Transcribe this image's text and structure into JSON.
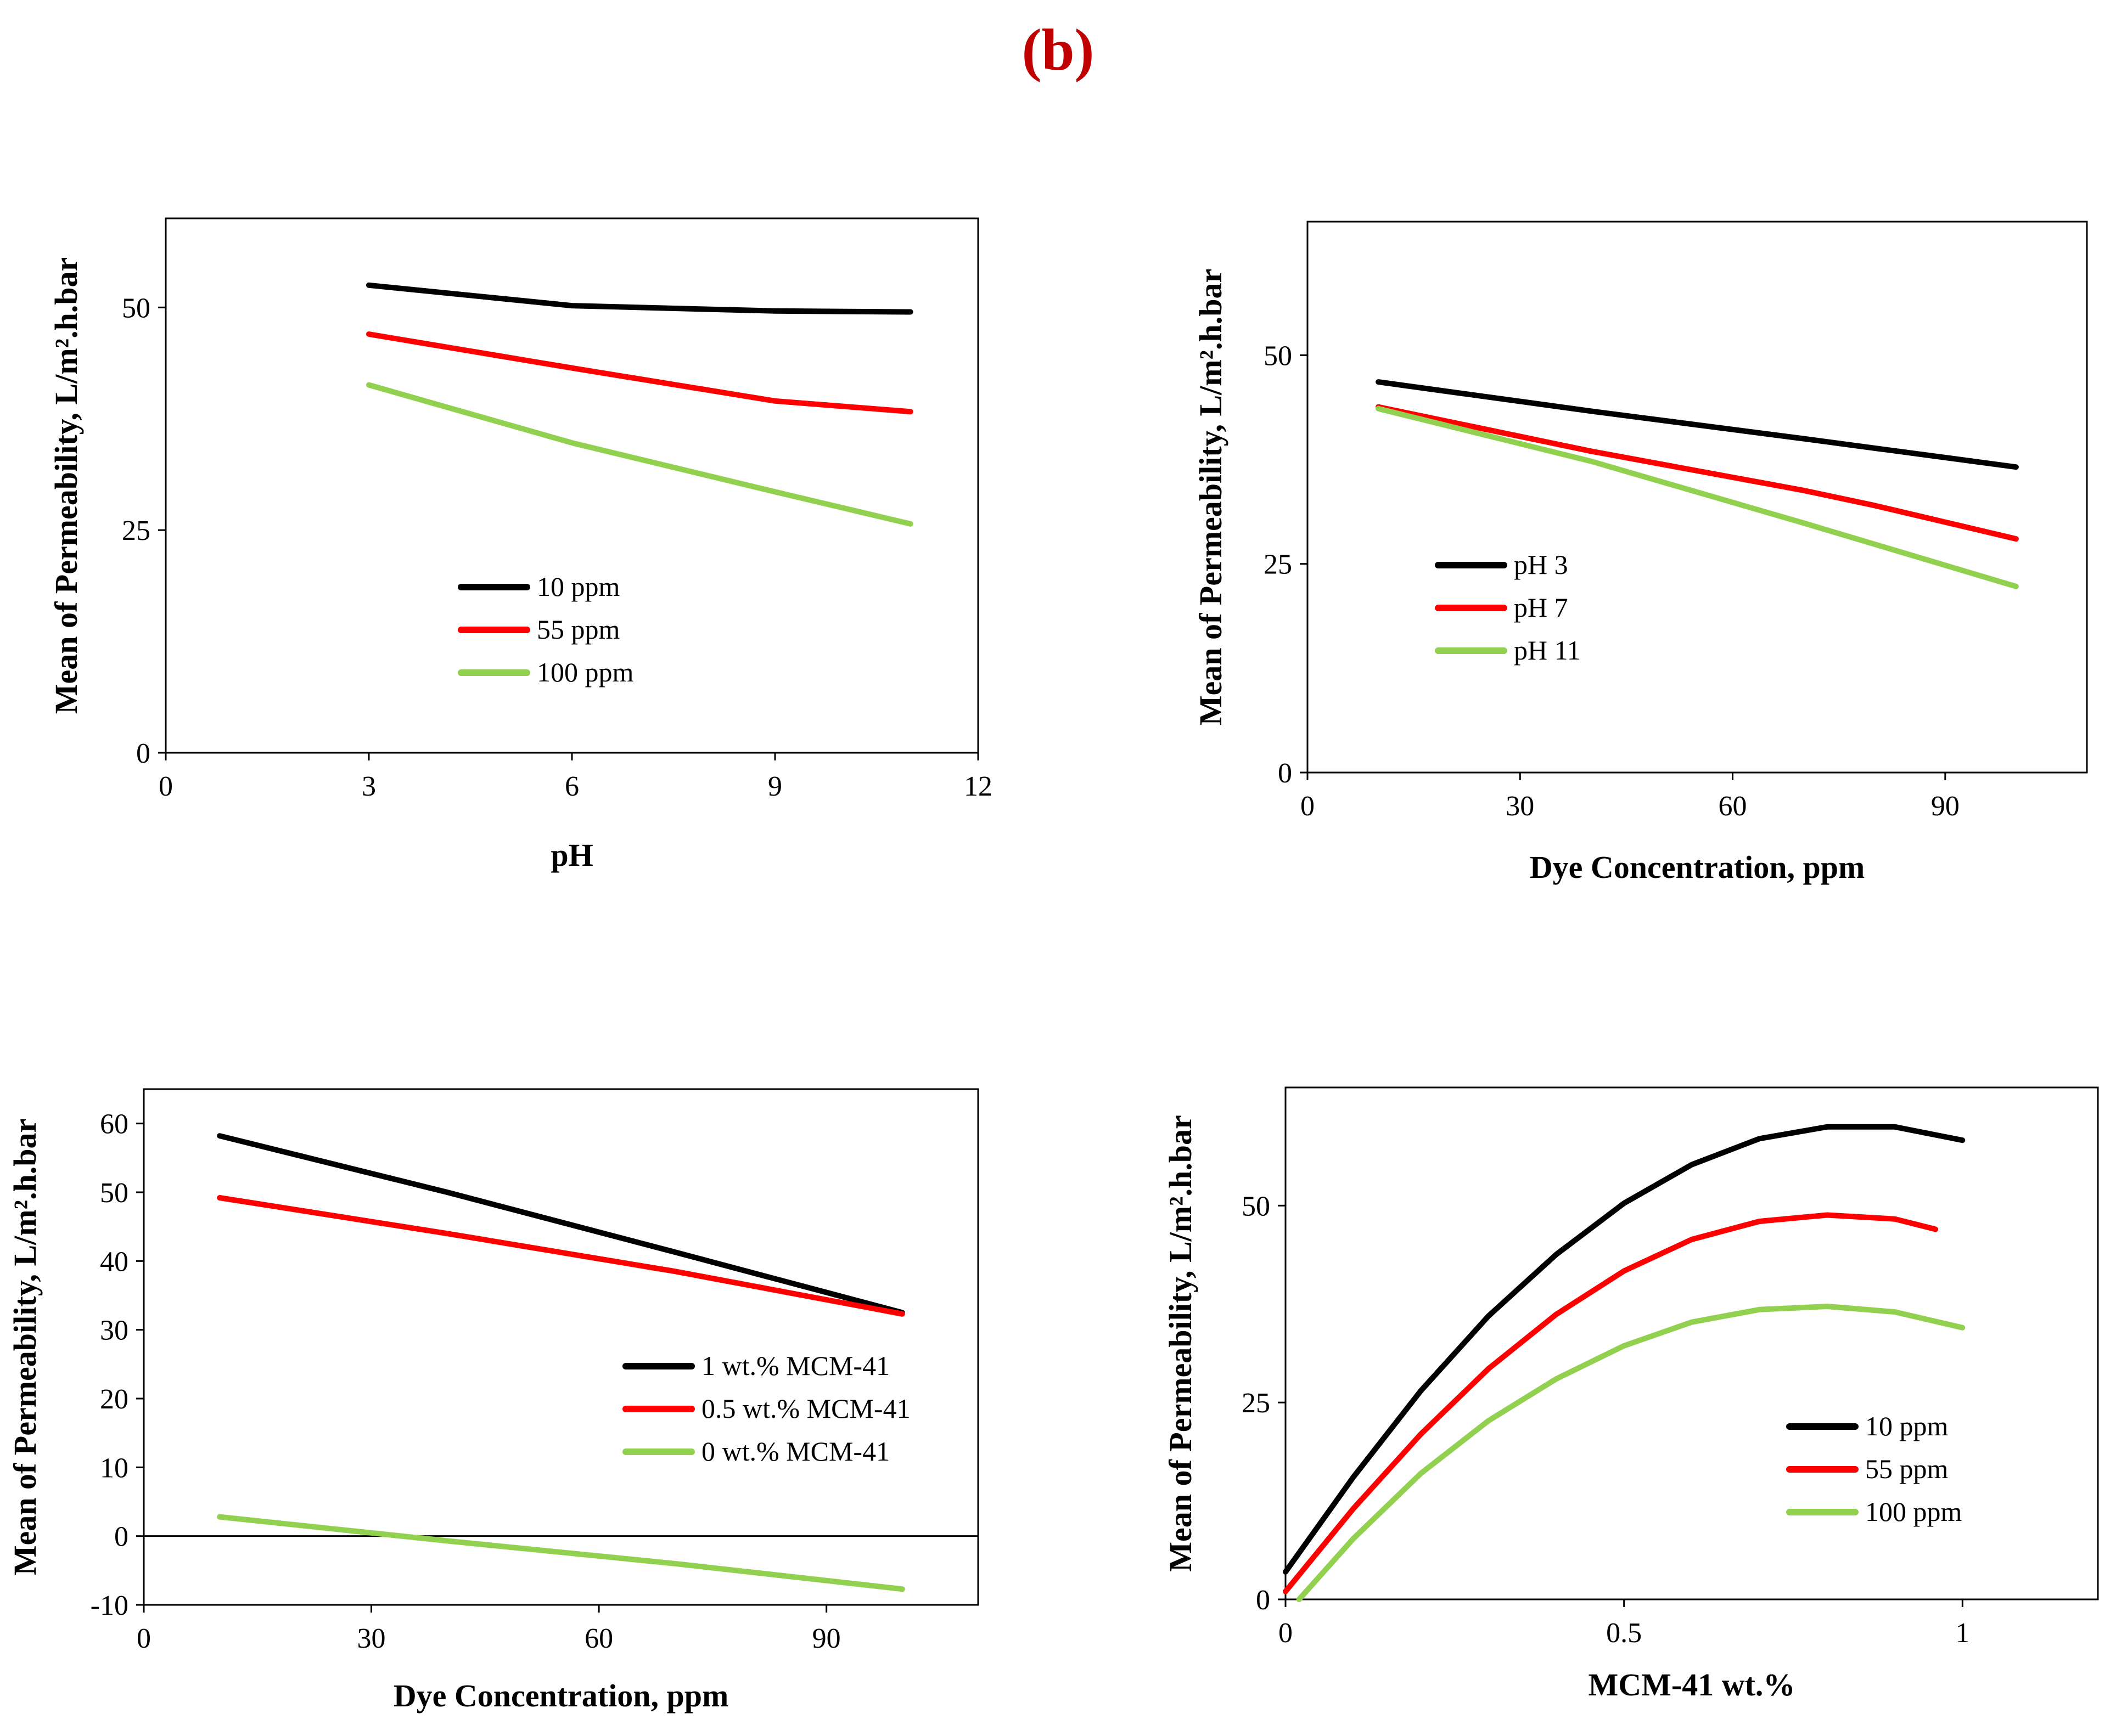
{
  "figure_label": "(b)",
  "chart_data": [
    {
      "type": "line",
      "xlabel": "pH",
      "ylabel": "Mean of Permeability,  L/m².h.bar",
      "xlim": [
        0,
        12
      ],
      "ylim": [
        0,
        60
      ],
      "xticks": [
        0,
        3,
        6,
        9,
        12
      ],
      "yticks": [
        0,
        25,
        50
      ],
      "legend_position": "center-left",
      "series": [
        {
          "name": "10 ppm",
          "color": "#000000",
          "x": [
            3,
            6,
            9,
            11
          ],
          "y": [
            52.5,
            50.2,
            49.6,
            49.5
          ]
        },
        {
          "name": "55 ppm",
          "color": "#ff0000",
          "x": [
            3,
            6,
            9,
            11
          ],
          "y": [
            47,
            43.2,
            39.5,
            38.3
          ]
        },
        {
          "name": "100 ppm",
          "color": "#92d050",
          "x": [
            3,
            6,
            9,
            11
          ],
          "y": [
            41.3,
            34.8,
            29.3,
            25.7
          ]
        }
      ]
    },
    {
      "type": "line",
      "xlabel": "Dye Concentration,  ppm",
      "ylabel": "Mean of Permeability,  L/m².h.bar",
      "xlim": [
        0,
        110
      ],
      "ylim": [
        0,
        66
      ],
      "xticks": [
        0,
        30,
        60,
        90
      ],
      "yticks": [
        0,
        25,
        50
      ],
      "legend_position": "center-left",
      "series": [
        {
          "name": "pH 3",
          "color": "#000000",
          "x": [
            10,
            40,
            70,
            100
          ],
          "y": [
            46.8,
            43.3,
            40,
            36.6
          ]
        },
        {
          "name": "pH 7",
          "color": "#ff0000",
          "x": [
            10,
            40,
            70,
            80,
            100
          ],
          "y": [
            43.8,
            38.5,
            33.8,
            32,
            28
          ]
        },
        {
          "name": "pH 11",
          "color": "#92d050",
          "x": [
            10,
            40,
            70,
            100
          ],
          "y": [
            43.6,
            37.3,
            29.9,
            22.3
          ]
        }
      ]
    },
    {
      "type": "line",
      "xlabel": "Dye Concentration,  ppm",
      "ylabel": "Mean of Permeability,  L/m².h.bar",
      "xlim": [
        0,
        110
      ],
      "ylim": [
        -10,
        65
      ],
      "xticks": [
        0,
        30,
        60,
        90
      ],
      "yticks": [
        -10,
        0,
        10,
        20,
        30,
        40,
        50,
        60
      ],
      "zero_line": true,
      "legend_position": "center-right",
      "series": [
        {
          "name": "1 wt.% MCM-41",
          "color": "#000000",
          "x": [
            10,
            40,
            70,
            100
          ],
          "y": [
            58.2,
            50,
            41.3,
            32.5
          ]
        },
        {
          "name": "0.5 wt.% MCM-41",
          "color": "#ff0000",
          "x": [
            10,
            40,
            70,
            100
          ],
          "y": [
            49.2,
            44,
            38.5,
            32.3
          ]
        },
        {
          "name": "0 wt.% MCM-41",
          "color": "#92d050",
          "x": [
            10,
            40,
            70,
            100
          ],
          "y": [
            2.8,
            -0.7,
            -4,
            -7.7
          ]
        }
      ]
    },
    {
      "type": "line",
      "xlabel": "MCM-41  wt.%",
      "ylabel": "Mean of Permeability,  L/m².h.bar",
      "xlim": [
        0,
        1.2
      ],
      "ylim": [
        0,
        65
      ],
      "xticks": [
        0,
        0.5,
        1
      ],
      "xtick_labels": [
        "0",
        "0.5",
        "1"
      ],
      "yticks": [
        0,
        25,
        50
      ],
      "legend_position": "bottom-right",
      "series": [
        {
          "name": "10 ppm",
          "color": "#000000",
          "x": [
            0,
            0.1,
            0.2,
            0.3,
            0.4,
            0.5,
            0.6,
            0.7,
            0.8,
            0.9,
            1.0
          ],
          "y": [
            3.5,
            15.5,
            26.5,
            36,
            43.8,
            50.3,
            55.2,
            58.5,
            60,
            60,
            58.3
          ]
        },
        {
          "name": "55 ppm",
          "color": "#ff0000",
          "x": [
            0,
            0.1,
            0.2,
            0.3,
            0.4,
            0.5,
            0.6,
            0.7,
            0.8,
            0.9,
            0.96
          ],
          "y": [
            1,
            11.5,
            21,
            29.3,
            36.2,
            41.7,
            45.7,
            48,
            48.8,
            48.3,
            47
          ]
        },
        {
          "name": "100 ppm",
          "color": "#92d050",
          "x": [
            0.02,
            0.1,
            0.2,
            0.3,
            0.4,
            0.5,
            0.6,
            0.7,
            0.8,
            0.9,
            1.0
          ],
          "y": [
            0,
            7.7,
            16,
            22.7,
            28,
            32.2,
            35.2,
            36.8,
            37.2,
            36.5,
            34.5
          ]
        }
      ]
    }
  ]
}
